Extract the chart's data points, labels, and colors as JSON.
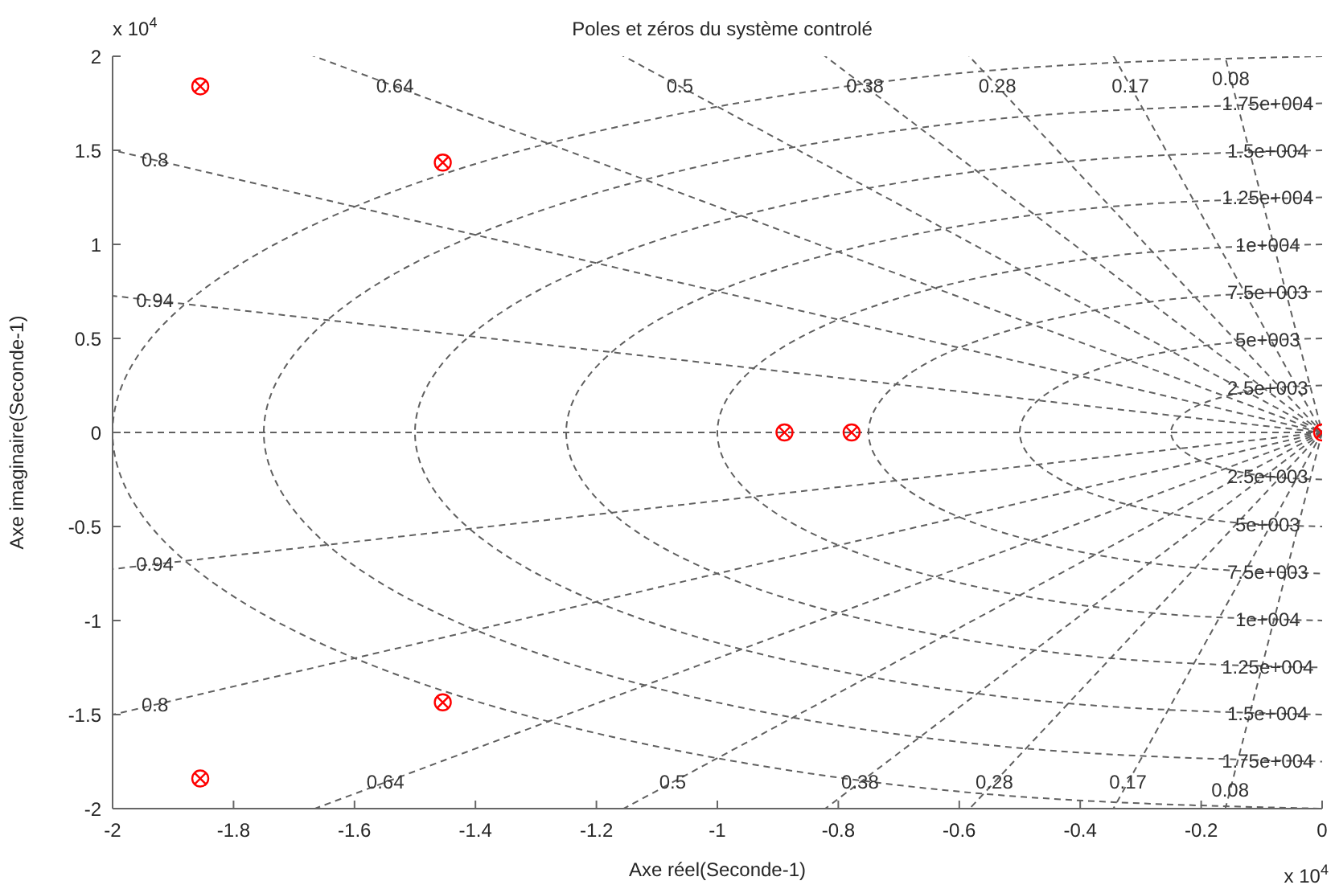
{
  "chart_data": {
    "type": "scatter",
    "title": "Poles et zéros du système controlé",
    "xlabel": "Axe réel(Seconde-1)",
    "ylabel": "Axe imaginaire(Seconde-1)",
    "xlim": [
      -2,
      0
    ],
    "ylim": [
      -2,
      2
    ],
    "xticks": [
      -2,
      -1.8,
      -1.6,
      -1.4,
      -1.2,
      -1,
      -0.8,
      -0.6,
      -0.4,
      -0.2,
      0
    ],
    "yticks": [
      -2,
      -1.5,
      -1,
      -0.5,
      0,
      0.5,
      1,
      1.5,
      2
    ],
    "ref_lines": [
      {
        "axis": "y",
        "value": 0,
        "color": "#606060",
        "line_style": "dashed"
      }
    ],
    "annotations": [
      "x 10$^{4}$",
      "x 10$^{4}$",
      {
        "text": "0.64",
        "x": -1.533,
        "y": 1.84
      },
      {
        "text": "0.5",
        "x": -1.062,
        "y": 1.84
      },
      {
        "text": "0.38",
        "x": -0.756,
        "y": 1.84
      },
      {
        "text": "0.28",
        "x": -0.537,
        "y": 1.84
      },
      {
        "text": "0.17",
        "x": -0.317,
        "y": 1.84
      },
      {
        "text": "0.08",
        "x": -0.151,
        "y": 1.88
      },
      {
        "text": "0.64",
        "x": -1.549,
        "y": -1.86
      },
      {
        "text": "0.5",
        "x": -1.074,
        "y": -1.86
      },
      {
        "text": "0.38",
        "x": -0.764,
        "y": -1.86
      },
      {
        "text": "0.28",
        "x": -0.542,
        "y": -1.86
      },
      {
        "text": "0.17",
        "x": -0.321,
        "y": -1.86
      },
      {
        "text": "0.08",
        "x": -0.152,
        "y": -1.9
      },
      {
        "text": "0.8",
        "x": -1.93,
        "y": 1.448
      },
      {
        "text": "0.94",
        "x": -1.93,
        "y": 0.701
      },
      {
        "text": "0.94",
        "x": -1.93,
        "y": -0.701
      },
      {
        "text": "0.8",
        "x": -1.93,
        "y": -1.448
      },
      {
        "text": "1.75e+004",
        "x": -0.09,
        "y": 1.748
      },
      {
        "text": "1.5e+004",
        "x": -0.09,
        "y": 1.497
      },
      {
        "text": "1.25e+004",
        "x": -0.09,
        "y": 1.247
      },
      {
        "text": "1e+004",
        "x": -0.09,
        "y": 0.996
      },
      {
        "text": "7.5e+003",
        "x": -0.09,
        "y": 0.745
      },
      {
        "text": "5e+003",
        "x": -0.09,
        "y": 0.492
      },
      {
        "text": "2.5e+003",
        "x": -0.09,
        "y": 0.233
      },
      {
        "text": "2.5e+003",
        "x": -0.09,
        "y": -0.233
      },
      {
        "text": "5e+003",
        "x": -0.09,
        "y": -0.492
      },
      {
        "text": "7.5e+003",
        "x": -0.09,
        "y": -0.745
      },
      {
        "text": "1e+004",
        "x": -0.09,
        "y": -0.996
      },
      {
        "text": "1.25e+004",
        "x": -0.09,
        "y": -1.247
      },
      {
        "text": "1.5e+004",
        "x": -0.09,
        "y": -1.497
      },
      {
        "text": "1.75e+004",
        "x": -0.09,
        "y": -1.748
      }
    ],
    "series": [
      {
        "type": "line",
        "color": "#606060",
        "line_style": "dashed",
        "marker": "none",
        "x": [
          -0.161,
          -0.151,
          0
        ],
        "values": [
          2,
          1.88,
          0
        ]
      },
      {
        "type": "line",
        "color": "#606060",
        "line_style": "dashed",
        "marker": "none",
        "x": [
          0,
          -0.152,
          -0.161
        ],
        "values": [
          0,
          -1.9,
          -2
        ]
      },
      {
        "type": "line",
        "color": "#606060",
        "line_style": "dashed",
        "marker": "none",
        "x": [
          -0.345,
          -0.317,
          0
        ],
        "values": [
          2,
          1.84,
          0
        ]
      },
      {
        "type": "line",
        "color": "#606060",
        "line_style": "dashed",
        "marker": "none",
        "x": [
          0,
          -0.321,
          -0.345
        ],
        "values": [
          0,
          -1.86,
          -2
        ]
      },
      {
        "type": "line",
        "color": "#606060",
        "line_style": "dashed",
        "marker": "none",
        "x": [
          -0.583,
          -0.537,
          0
        ],
        "values": [
          2,
          1.84,
          0
        ]
      },
      {
        "type": "line",
        "color": "#606060",
        "line_style": "dashed",
        "marker": "none",
        "x": [
          0,
          -0.542,
          -0.583
        ],
        "values": [
          0,
          -1.86,
          -2
        ]
      },
      {
        "type": "line",
        "color": "#606060",
        "line_style": "dashed",
        "marker": "none",
        "x": [
          -0.822,
          -0.756,
          0
        ],
        "values": [
          2,
          1.84,
          0
        ]
      },
      {
        "type": "line",
        "color": "#606060",
        "line_style": "dashed",
        "marker": "none",
        "x": [
          0,
          -0.764,
          -0.822
        ],
        "values": [
          0,
          -1.86,
          -2
        ]
      },
      {
        "type": "line",
        "color": "#606060",
        "line_style": "dashed",
        "marker": "none",
        "x": [
          -1.155,
          -1.062,
          0
        ],
        "values": [
          2,
          1.84,
          0
        ]
      },
      {
        "type": "line",
        "color": "#606060",
        "line_style": "dashed",
        "marker": "none",
        "x": [
          0,
          -1.074,
          -1.155
        ],
        "values": [
          0,
          -1.86,
          -2
        ]
      },
      {
        "type": "line",
        "color": "#606060",
        "line_style": "dashed",
        "marker": "none",
        "x": [
          -1.666,
          -1.533,
          0
        ],
        "values": [
          2,
          1.84,
          0
        ]
      },
      {
        "type": "line",
        "color": "#606060",
        "line_style": "dashed",
        "marker": "none",
        "x": [
          0,
          -1.549,
          -1.666
        ],
        "values": [
          0,
          -1.86,
          -2
        ]
      },
      {
        "type": "line",
        "color": "#606060",
        "line_style": "dashed",
        "marker": "none",
        "x": [
          -2,
          -1.93,
          0
        ],
        "values": [
          1.5,
          1.448,
          0
        ]
      },
      {
        "type": "line",
        "color": "#606060",
        "line_style": "dashed",
        "marker": "none",
        "x": [
          0,
          -1.93,
          -2
        ],
        "values": [
          0,
          -1.448,
          -1.5
        ]
      },
      {
        "type": "line",
        "color": "#606060",
        "line_style": "dashed",
        "marker": "none",
        "x": [
          -2,
          -1.93,
          0
        ],
        "values": [
          0.726,
          0.701,
          0
        ]
      },
      {
        "type": "line",
        "color": "#606060",
        "line_style": "dashed",
        "marker": "none",
        "x": [
          0,
          -1.93,
          -2
        ],
        "values": [
          0,
          -0.701,
          -0.726
        ]
      },
      {
        "type": "line",
        "color": "#606060",
        "line_style": "dashed",
        "marker": "none",
        "x": [
          0,
          -0.065,
          -0.125,
          -0.177,
          -0.217,
          -0.241,
          -0.25,
          -0.241,
          -0.217,
          -0.177,
          -0.125,
          -0.065,
          0
        ],
        "values": [
          0.25,
          0.241,
          0.217,
          0.177,
          0.125,
          0.065,
          0,
          -0.065,
          -0.125,
          -0.177,
          -0.217,
          -0.241,
          -0.25
        ]
      },
      {
        "type": "line",
        "color": "#606060",
        "line_style": "dashed",
        "marker": "none",
        "x": [
          0,
          -0.129,
          -0.25,
          -0.354,
          -0.433,
          -0.483,
          -0.5,
          -0.483,
          -0.433,
          -0.354,
          -0.25,
          -0.129,
          0
        ],
        "values": [
          0.5,
          0.483,
          0.433,
          0.354,
          0.25,
          0.129,
          0,
          -0.129,
          -0.25,
          -0.354,
          -0.433,
          -0.483,
          -0.5
        ]
      },
      {
        "type": "line",
        "color": "#606060",
        "line_style": "dashed",
        "marker": "none",
        "x": [
          0,
          -0.194,
          -0.375,
          -0.53,
          -0.65,
          -0.724,
          -0.75,
          -0.724,
          -0.65,
          -0.53,
          -0.375,
          -0.194,
          0
        ],
        "values": [
          0.75,
          0.724,
          0.65,
          0.53,
          0.375,
          0.194,
          0,
          -0.194,
          -0.375,
          -0.53,
          -0.65,
          -0.724,
          -0.75
        ]
      },
      {
        "type": "line",
        "color": "#606060",
        "line_style": "dashed",
        "marker": "none",
        "x": [
          0,
          -0.259,
          -0.5,
          -0.707,
          -0.866,
          -0.966,
          -1,
          -0.966,
          -0.866,
          -0.707,
          -0.5,
          -0.259,
          0
        ],
        "values": [
          1,
          0.966,
          0.866,
          0.707,
          0.5,
          0.259,
          0,
          -0.259,
          -0.5,
          -0.707,
          -0.866,
          -0.966,
          -1
        ]
      },
      {
        "type": "line",
        "color": "#606060",
        "line_style": "dashed",
        "marker": "none",
        "x": [
          0,
          -0.324,
          -0.625,
          -0.884,
          -1.083,
          -1.207,
          -1.25,
          -1.207,
          -1.083,
          -0.884,
          -0.625,
          -0.324,
          0
        ],
        "values": [
          1.25,
          1.207,
          1.083,
          0.884,
          0.625,
          0.324,
          0,
          -0.324,
          -0.625,
          -0.884,
          -1.083,
          -1.207,
          -1.25
        ]
      },
      {
        "type": "line",
        "color": "#606060",
        "line_style": "dashed",
        "marker": "none",
        "x": [
          0,
          -0.388,
          -0.75,
          -1.061,
          -1.299,
          -1.449,
          -1.5,
          -1.449,
          -1.299,
          -1.061,
          -0.75,
          -0.388,
          0
        ],
        "values": [
          1.5,
          1.449,
          1.299,
          1.061,
          0.75,
          0.388,
          0,
          -0.388,
          -0.75,
          -1.061,
          -1.299,
          -1.449,
          -1.5
        ]
      },
      {
        "type": "line",
        "color": "#606060",
        "line_style": "dashed",
        "marker": "none",
        "x": [
          0,
          -0.453,
          -0.875,
          -1.237,
          -1.516,
          -1.69,
          -1.75,
          -1.69,
          -1.516,
          -1.237,
          -0.875,
          -0.453,
          0
        ],
        "values": [
          1.75,
          1.69,
          1.516,
          1.237,
          0.875,
          0.453,
          0,
          -0.453,
          -0.875,
          -1.237,
          -1.516,
          -1.69,
          -1.75
        ]
      },
      {
        "type": "line",
        "color": "#606060",
        "line_style": "dashed",
        "marker": "none",
        "x": [
          0,
          -0.518,
          -1,
          -1.414,
          -1.732,
          -1.932,
          -2,
          -1.932,
          -1.732,
          -1.414,
          -1,
          -0.518,
          0
        ],
        "values": [
          2,
          1.932,
          1.732,
          1.414,
          1,
          0.518,
          0,
          -0.518,
          -1,
          -1.414,
          -1.732,
          -1.932,
          -2
        ]
      },
      {
        "type": "scatter",
        "color": "#ff0000",
        "marker": "circle",
        "x": [
          -1.855,
          -1.855,
          -1.454,
          -1.454,
          -0.889,
          -0.778,
          0
        ],
        "values": [
          1.84,
          -1.84,
          1.435,
          -1.435,
          0,
          0,
          0
        ]
      },
      {
        "type": "scatter",
        "color": "#ff0000",
        "marker": "cross",
        "x": [
          -1.855,
          -1.855,
          -1.454,
          -1.454,
          -0.889,
          -0.778,
          0
        ],
        "values": [
          1.84,
          -1.84,
          1.435,
          -1.435,
          0,
          0,
          0
        ]
      }
    ]
  }
}
